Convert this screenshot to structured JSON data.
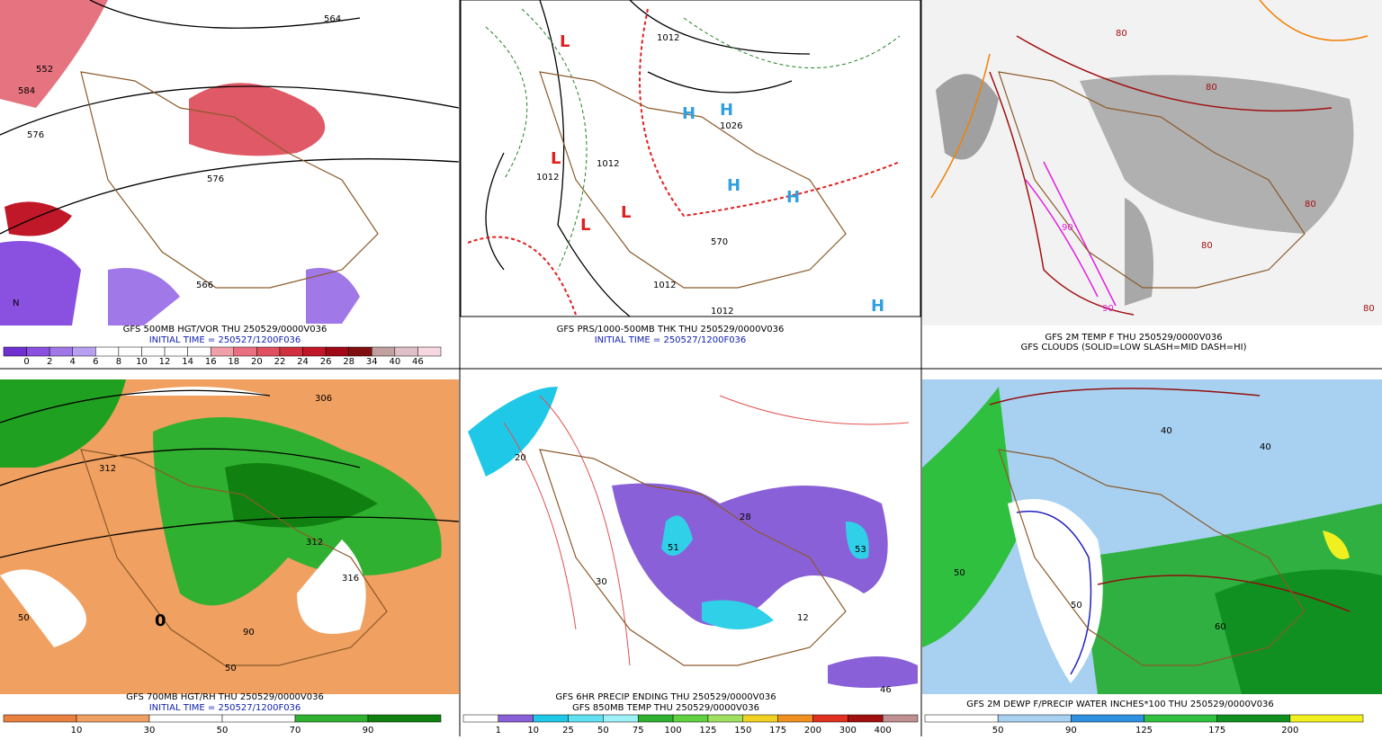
{
  "panels": [
    {
      "caption": [
        "GFS 500MB HGT/VOR THU 250529/0000V036",
        "INITIAL TIME = 250527/1200F036"
      ],
      "map_labels": [
        "564",
        "576",
        "552",
        "584",
        "566",
        "576",
        "N"
      ],
      "colorbar": {
        "labels": [
          0,
          2,
          4,
          6,
          8,
          10,
          12,
          14,
          16,
          18,
          20,
          22,
          24,
          26,
          28,
          34,
          40,
          46
        ],
        "colors": [
          "#7030d0",
          "#8a50e0",
          "#a078e8",
          "#b8a0f0",
          "#ffffff",
          "#ffffff",
          "#ffffff",
          "#ffffff",
          "#ffffff",
          "#f0a0a8",
          "#e87080",
          "#e05060",
          "#d03040",
          "#c01828",
          "#a00818",
          "#801010",
          "#c0a0a0",
          "#e0c0c8",
          "#f8d8e0"
        ]
      }
    },
    {
      "caption": [
        "GFS PRS/1000-500MB THK THU 250529/0000V036",
        "INITIAL TIME = 250527/1200F036"
      ],
      "map_labels": [
        "1012",
        "1012",
        "1026",
        "1012",
        "1012",
        "1012",
        "570",
        "L",
        "L",
        "L",
        "L",
        "H",
        "H",
        "H",
        "H",
        "H"
      ],
      "colorbar": null
    },
    {
      "caption": [
        "GFS 2M TEMP F THU 250529/0000V036",
        "GFS CLOUDS (SOLID=LOW SLASH=MID DASH=HI)"
      ],
      "map_labels": [
        "80",
        "80",
        "80",
        "90",
        "90",
        "80",
        "80"
      ],
      "colorbar": null
    },
    {
      "caption": [
        "GFS 700MB HGT/RH THU 250529/0000V036",
        "INITIAL TIME = 250527/1200F036"
      ],
      "map_labels": [
        "306",
        "312",
        "312",
        "316",
        "50",
        "50",
        "90",
        "0"
      ],
      "colorbar": {
        "labels": [
          10,
          30,
          50,
          70,
          90
        ],
        "colors": [
          "#e88040",
          "#f0a060",
          "#ffffff",
          "#ffffff",
          "#30b030",
          "#108010"
        ]
      }
    },
    {
      "caption": [
        "GFS 6HR PRECIP ENDING THU 250529/0000V036",
        "GFS 850MB TEMP THU 250529/0000V036"
      ],
      "map_labels": [
        "20",
        "51",
        "28",
        "53",
        "12",
        "30",
        "46"
      ],
      "colorbar": {
        "labels": [
          1,
          10,
          25,
          50,
          75,
          100,
          125,
          150,
          175,
          200,
          300,
          400
        ],
        "colors": [
          "#ffffff",
          "#8a60d8",
          "#20c8e8",
          "#60e0f0",
          "#a0f0f8",
          "#30b030",
          "#60d040",
          "#a0e060",
          "#f0d020",
          "#f09020",
          "#e03020",
          "#a01010",
          "#c09090"
        ]
      }
    },
    {
      "caption": [
        "GFS 2M DEWP F/PRECIP WATER INCHES*100 THU 250529/0000V036"
      ],
      "map_labels": [
        "40",
        "40",
        "50",
        "60",
        "50"
      ],
      "colorbar": {
        "labels": [
          50,
          90,
          125,
          175,
          200
        ],
        "colors": [
          "#ffffff",
          "#a8d0f0",
          "#3090e0",
          "#30c040",
          "#109020",
          "#f0f020"
        ]
      }
    }
  ]
}
